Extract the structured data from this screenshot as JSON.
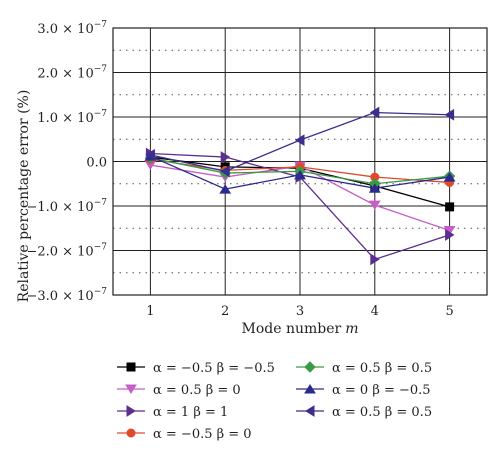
{
  "chart_data": {
    "type": "line",
    "xlabel": "Mode number",
    "xlabel_var": "m",
    "ylabel": "Relative percentage error (%)",
    "x": [
      1,
      2,
      3,
      4,
      5
    ],
    "xlim": [
      0.5,
      5.5
    ],
    "ylim": [
      -3e-07,
      3e-07
    ],
    "y_ticks": [
      {
        "value": 3e-07,
        "label": "3.0 × 10",
        "exp": "−7"
      },
      {
        "value": 2e-07,
        "label": "2.0 × 10",
        "exp": "−7"
      },
      {
        "value": 1e-07,
        "label": "1.0 × 10",
        "exp": "−7"
      },
      {
        "value": 0,
        "label": "0.0",
        "exp": ""
      },
      {
        "value": -1e-07,
        "label": "−1.0 × 10",
        "exp": "−7"
      },
      {
        "value": -2e-07,
        "label": "−2.0 × 10",
        "exp": "−7"
      },
      {
        "value": -3e-07,
        "label": "−3.0 × 10",
        "exp": "−7"
      }
    ],
    "x_ticks": [
      {
        "value": 1,
        "label": "1"
      },
      {
        "value": 2,
        "label": "2"
      },
      {
        "value": 3,
        "label": "3"
      },
      {
        "value": 4,
        "label": "4"
      },
      {
        "value": 5,
        "label": "5"
      }
    ],
    "grid": true,
    "legend_placement": "bottom, two columns",
    "series": [
      {
        "name": "α = −0.5 β = −0.5",
        "color": "#000000",
        "marker": "square",
        "values": [
          1e-08,
          -1.2e-08,
          -1.5e-08,
          -5.5e-08,
          -1.02e-07
        ]
      },
      {
        "name": "α = 0.5 β = 0",
        "color": "#c65ec8",
        "marker": "triangle-down",
        "values": [
          -8e-09,
          -3.5e-08,
          -1e-08,
          -9.8e-08,
          -1.55e-07
        ]
      },
      {
        "name": "α = 1 β = 1",
        "color": "#5b2e91",
        "marker": "triangle-right",
        "values": [
          1.8e-08,
          1e-08,
          -3.5e-08,
          -2.2e-07,
          -1.65e-07
        ]
      },
      {
        "name": "α = −0.5 β = 0",
        "color": "#e04a2a",
        "marker": "circle",
        "values": [
          5e-09,
          -2e-08,
          -1.2e-08,
          -3.5e-08,
          -4.7e-08
        ]
      },
      {
        "name": "α = 0.5 β = 0.5",
        "color": "#3a9a45",
        "marker": "diamond",
        "values": [
          8e-09,
          -2.6e-08,
          -2.2e-08,
          -5e-08,
          -3.3e-08
        ]
      },
      {
        "name": "α = 0 β = −0.5",
        "color": "#2d2a8e",
        "marker": "triangle-up",
        "values": [
          1.2e-08,
          -6.2e-08,
          -3e-08,
          -6e-08,
          -3.5e-08
        ]
      },
      {
        "name": "α = 0.5 β = 0.5",
        "color": "#3a2f8f",
        "marker": "triangle-left",
        "values": [
          1.5e-08,
          -2.2e-08,
          4.8e-08,
          1.1e-07,
          1.05e-07
        ]
      }
    ],
    "legend_layout": [
      [
        0,
        4
      ],
      [
        1,
        5
      ],
      [
        2,
        6
      ],
      [
        3,
        null
      ]
    ]
  }
}
